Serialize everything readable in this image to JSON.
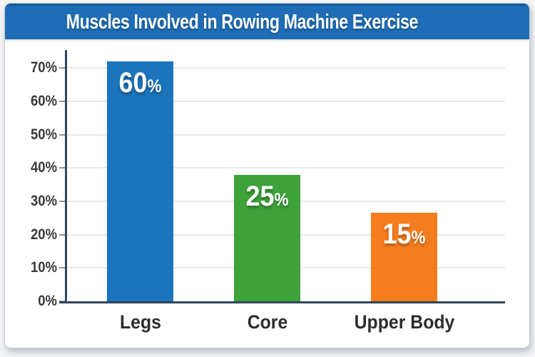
{
  "title_banner": {
    "title": "Muscles Involved in Rowing Machine Exercise"
  },
  "chart_data": {
    "type": "bar",
    "title": "Muscles Involved in Rowing Machine Exercise",
    "categories": [
      "Legs",
      "Core",
      "Upper Body"
    ],
    "values": [
      60,
      25,
      15
    ],
    "unit": "%",
    "data_labels": [
      "60%",
      "25%",
      "15%"
    ],
    "y_tick_labels": [
      "0%",
      "10%",
      "20%",
      "30%",
      "40%",
      "50%",
      "60%",
      "70%"
    ],
    "ylim": [
      0,
      75
    ],
    "grid": "horizontal",
    "legend": false,
    "bar_colors": [
      "#1b74bc",
      "#3ea23b",
      "#f67d1e"
    ],
    "visual_bar_heights_pct": [
      71.9,
      38.0,
      26.5
    ]
  },
  "colors": {
    "banner_bg": "#1e6db6",
    "banner_top_edge": "#155a9c",
    "axis": "#31455c",
    "gridline": "#e8eaed",
    "tick": "#8d96a0",
    "y_label_text": "#3a3a3a",
    "x_label_text": "#2d2d2d",
    "bar_label_text": "#ffffff",
    "card_bg": "#ffffff",
    "card_border": "#c7ccd2"
  }
}
